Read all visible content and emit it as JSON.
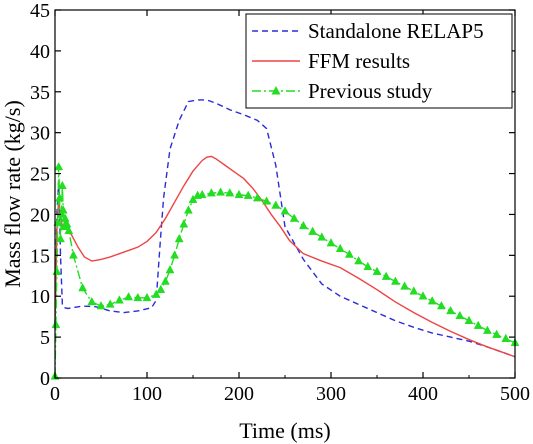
{
  "chart_data": {
    "type": "line",
    "title": "",
    "xlabel": "Time (ms)",
    "ylabel": "Mass flow rate (kg/s)",
    "xlim": [
      0,
      500
    ],
    "ylim": [
      0,
      45
    ],
    "xticks": [
      0,
      100,
      200,
      300,
      400,
      500
    ],
    "yticks": [
      0,
      5,
      10,
      15,
      20,
      25,
      30,
      35,
      40,
      45
    ],
    "grid": false,
    "legend_position": "top-right",
    "series": [
      {
        "name": "Standalone RELAP5",
        "color": "#2b2bd9",
        "style": "dashed",
        "marker": "none",
        "x": [
          0,
          2,
          4,
          6,
          8,
          10,
          14,
          20,
          30,
          45,
          60,
          75,
          90,
          105,
          110,
          114,
          118,
          125,
          135,
          145,
          155,
          165,
          175,
          190,
          205,
          220,
          230,
          240,
          250,
          270,
          290,
          310,
          330,
          350,
          370,
          390,
          410,
          430,
          450,
          470,
          490,
          500
        ],
        "y": [
          6.5,
          20,
          24,
          15,
          9,
          8.6,
          8.5,
          8.6,
          8.8,
          8.7,
          8.2,
          8.0,
          8.2,
          8.6,
          9.5,
          16,
          22,
          28,
          31.5,
          33.8,
          34.0,
          34.0,
          33.6,
          32.8,
          32.2,
          31.5,
          30.5,
          26,
          18.5,
          14.5,
          11.5,
          10.0,
          9.0,
          8.0,
          7.0,
          6.2,
          5.5,
          5.0,
          4.5,
          3.8,
          3.0,
          2.6
        ]
      },
      {
        "name": "FFM results",
        "color": "#ee4444",
        "style": "solid",
        "marker": "none",
        "x": [
          0,
          2,
          4,
          6,
          8,
          12,
          18,
          25,
          32,
          40,
          50,
          60,
          70,
          80,
          90,
          100,
          110,
          120,
          130,
          140,
          150,
          160,
          165,
          170,
          175,
          185,
          195,
          205,
          215,
          225,
          235,
          245,
          255,
          270,
          290,
          310,
          330,
          350,
          370,
          390,
          410,
          430,
          450,
          470,
          490,
          500
        ],
        "y": [
          6,
          18,
          22,
          20,
          18.5,
          18.5,
          17.5,
          16,
          14.8,
          14.3,
          14.5,
          14.8,
          15.2,
          15.6,
          16.0,
          16.7,
          17.8,
          19.5,
          21.5,
          23.5,
          25.3,
          26.6,
          27.0,
          27.1,
          26.8,
          26.0,
          25.2,
          24.4,
          23.2,
          21.7,
          20.0,
          18.5,
          16.8,
          15.2,
          14.3,
          13.5,
          12.2,
          10.8,
          9.3,
          8.0,
          6.8,
          5.7,
          4.7,
          3.8,
          3.0,
          2.6
        ]
      },
      {
        "name": "Previous study",
        "color": "#22dd22",
        "style": "dashdot",
        "marker": "triangle",
        "x": [
          0,
          1,
          2,
          3,
          4,
          5,
          6,
          7,
          8,
          9,
          10,
          11,
          12,
          13,
          15,
          20,
          30,
          40,
          50,
          60,
          70,
          80,
          90,
          100,
          110,
          115,
          120,
          125,
          130,
          135,
          140,
          145,
          150,
          155,
          160,
          170,
          180,
          190,
          200,
          210,
          220,
          230,
          240,
          250,
          260,
          270,
          280,
          290,
          300,
          310,
          320,
          330,
          340,
          350,
          360,
          370,
          380,
          390,
          400,
          410,
          420,
          430,
          440,
          450,
          460,
          470,
          480,
          490,
          500
        ],
        "y": [
          0.2,
          6.5,
          13,
          19,
          25.8,
          22,
          17,
          20,
          23.5,
          20.5,
          18.5,
          19.5,
          18.5,
          18.8,
          18.0,
          15.0,
          11.0,
          9.3,
          8.8,
          9.0,
          9.5,
          9.9,
          9.8,
          9.8,
          10.2,
          10.8,
          11.8,
          13.2,
          15.0,
          17.0,
          18.8,
          20.5,
          21.8,
          22.3,
          22.4,
          22.6,
          22.7,
          22.6,
          22.4,
          22.3,
          22.0,
          21.6,
          21.1,
          20.4,
          19.5,
          18.6,
          17.9,
          17.2,
          16.5,
          15.8,
          15.1,
          14.3,
          13.6,
          13.0,
          12.4,
          11.8,
          11.2,
          10.6,
          10.0,
          9.4,
          8.8,
          8.2,
          7.6,
          7.0,
          6.4,
          5.8,
          5.3,
          4.8,
          4.3
        ]
      }
    ]
  }
}
